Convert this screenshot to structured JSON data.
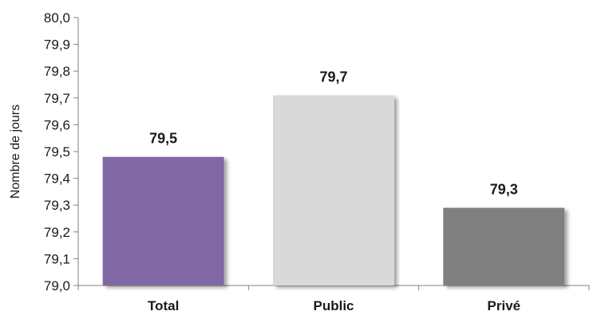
{
  "chart_data": {
    "type": "bar",
    "categories": [
      "Total",
      "Public",
      "Privé"
    ],
    "values": [
      79.48,
      79.71,
      79.29
    ],
    "value_labels": [
      "79,5",
      "79,7",
      "79,3"
    ],
    "colors": [
      "#8068a4",
      "#d9d9d9",
      "#808080"
    ],
    "ylabel": "Nombre de jours",
    "xlabel": "",
    "title": "",
    "ylim": [
      79.0,
      80.0
    ],
    "yticks": [
      79.0,
      79.1,
      79.2,
      79.3,
      79.4,
      79.5,
      79.6,
      79.7,
      79.8,
      79.9,
      80.0
    ],
    "ytick_labels": [
      "79,0",
      "79,1",
      "79,2",
      "79,3",
      "79,4",
      "79,5",
      "79,6",
      "79,7",
      "79,8",
      "79,9",
      "80,0"
    ],
    "grid": false,
    "legend": "none"
  }
}
